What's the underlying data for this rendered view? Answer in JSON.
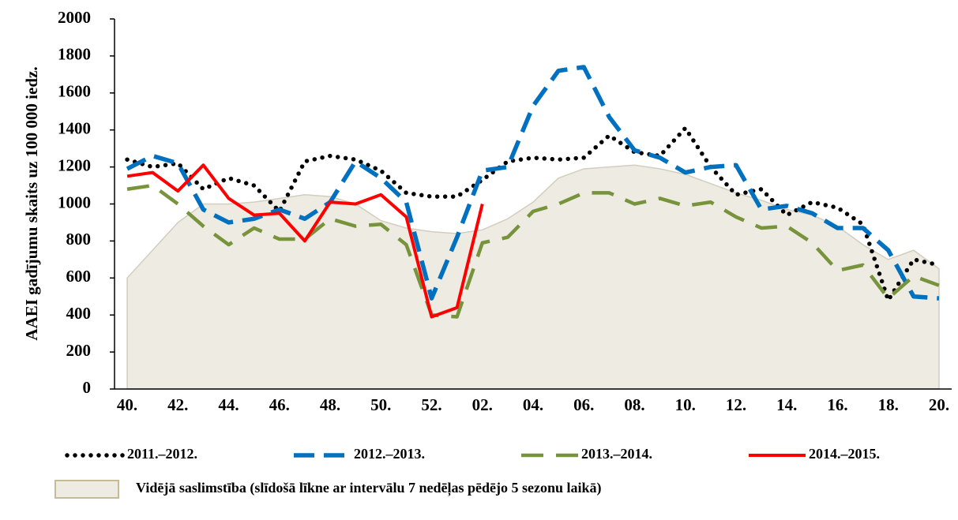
{
  "chart_data": {
    "type": "line",
    "y_label": "AAEI gadījumu skaits uz 100 000 iedz.",
    "categories": [
      "40.",
      null,
      "42.",
      null,
      "44.",
      null,
      "46.",
      null,
      "48.",
      null,
      "50.",
      null,
      "52.",
      null,
      "02.",
      null,
      "04.",
      null,
      "06.",
      null,
      "08.",
      null,
      "10.",
      null,
      "12.",
      null,
      "14.",
      null,
      "16.",
      null,
      "18.",
      null,
      "20."
    ],
    "ylim": [
      0,
      2000
    ],
    "yticks": [
      0,
      200,
      400,
      600,
      800,
      1000,
      1200,
      1400,
      1600,
      1800,
      2000
    ],
    "legend": "bottom",
    "area": {
      "name": "Vidējā saslimstība (slīdošā līkne ar intervālu 7 nedēļas pēdējo 5 sezonu laikā)",
      "color": "#eeebe2",
      "values": [
        600,
        750,
        900,
        1000,
        1000,
        1010,
        1030,
        1050,
        1040,
        1000,
        910,
        870,
        850,
        840,
        860,
        920,
        1010,
        1140,
        1190,
        1200,
        1210,
        1190,
        1160,
        1110,
        1060,
        1020,
        970,
        940,
        880,
        780,
        700,
        750,
        650
      ]
    },
    "series": [
      {
        "name": "2011.–2012.",
        "color": "#000000",
        "values": [
          1240,
          1200,
          1220,
          1080,
          1140,
          1100,
          960,
          1230,
          1260,
          1240,
          1180,
          1060,
          1040,
          1040,
          1130,
          1230,
          1250,
          1240,
          1250,
          1370,
          1280,
          1260,
          1410,
          1200,
          1050,
          1080,
          940,
          1010,
          980,
          890,
          480,
          700,
          670
        ]
      },
      {
        "name": "2012.–2013.",
        "color": "#0070c0",
        "values": [
          1190,
          1260,
          1220,
          970,
          900,
          920,
          970,
          920,
          1010,
          1230,
          1140,
          1010,
          490,
          820,
          1180,
          1200,
          1530,
          1720,
          1740,
          1470,
          1290,
          1250,
          1170,
          1200,
          1210,
          970,
          990,
          950,
          870,
          870,
          750,
          500,
          490
        ]
      },
      {
        "name": "2013.–2014.",
        "color": "#77933c",
        "values": [
          1080,
          1100,
          1000,
          880,
          780,
          870,
          810,
          810,
          920,
          880,
          890,
          780,
          400,
          390,
          790,
          820,
          960,
          1000,
          1060,
          1060,
          1000,
          1030,
          990,
          1010,
          930,
          870,
          880,
          790,
          640,
          670,
          490,
          610,
          560
        ]
      },
      {
        "name": "2014.–2015.",
        "color": "#ff0000",
        "values": [
          1150,
          1170,
          1070,
          1210,
          1030,
          940,
          950,
          800,
          1010,
          1000,
          1050,
          930,
          390,
          440,
          1000,
          null,
          null,
          null,
          null,
          null,
          null,
          null,
          null,
          null,
          null,
          null,
          null,
          null,
          null,
          null,
          null,
          null,
          null
        ]
      }
    ]
  }
}
